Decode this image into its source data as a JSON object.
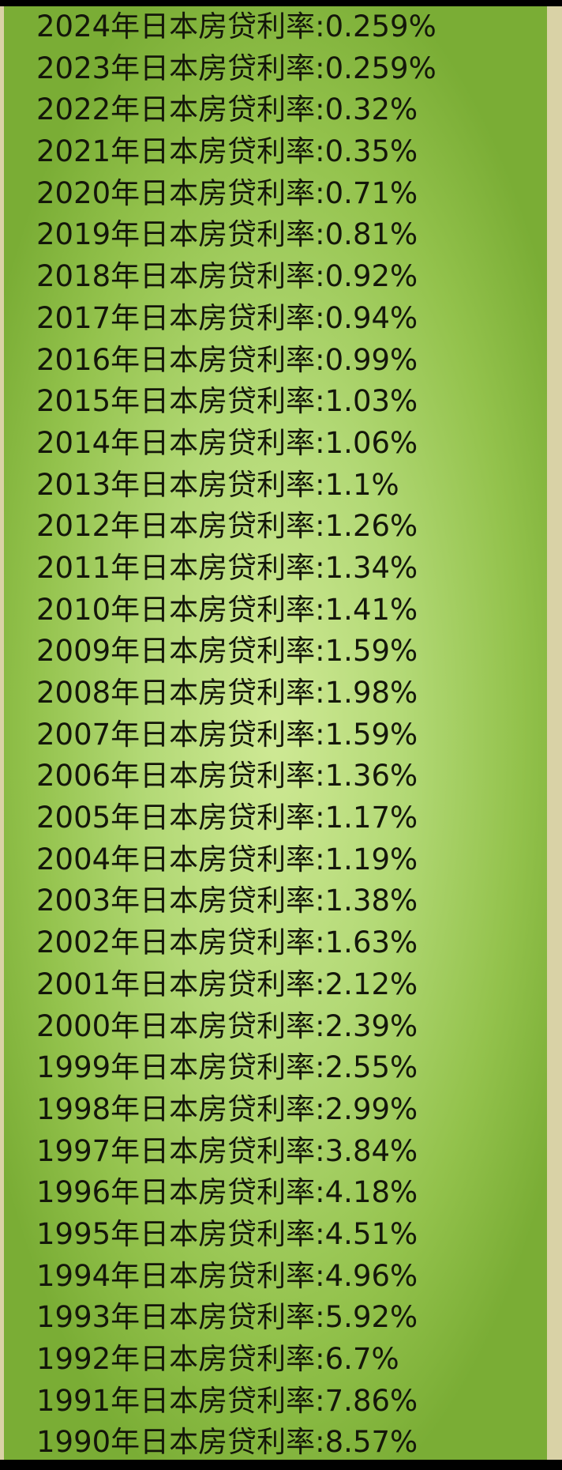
{
  "label": "年日本房贷利率:",
  "rows": [
    {
      "year": "2024",
      "rate": "0.259%"
    },
    {
      "year": "2023",
      "rate": "0.259%"
    },
    {
      "year": "2022",
      "rate": "0.32%"
    },
    {
      "year": "2021",
      "rate": "0.35%"
    },
    {
      "year": "2020",
      "rate": "0.71%"
    },
    {
      "year": "2019",
      "rate": "0.81%"
    },
    {
      "year": "2018",
      "rate": "0.92%"
    },
    {
      "year": "2017",
      "rate": "0.94%"
    },
    {
      "year": "2016",
      "rate": "0.99%"
    },
    {
      "year": "2015",
      "rate": "1.03%"
    },
    {
      "year": "2014",
      "rate": "1.06%"
    },
    {
      "year": "2013",
      "rate": "1.1%"
    },
    {
      "year": "2012",
      "rate": "1.26%"
    },
    {
      "year": "2011",
      "rate": "1.34%"
    },
    {
      "year": "2010",
      "rate": "1.41%"
    },
    {
      "year": "2009",
      "rate": "1.59%"
    },
    {
      "year": "2008",
      "rate": "1.98%"
    },
    {
      "year": "2007",
      "rate": "1.59%"
    },
    {
      "year": "2006",
      "rate": "1.36%"
    },
    {
      "year": "2005",
      "rate": "1.17%"
    },
    {
      "year": "2004",
      "rate": "1.19%"
    },
    {
      "year": "2003",
      "rate": "1.38%"
    },
    {
      "year": "2002",
      "rate": "1.63%"
    },
    {
      "year": "2001",
      "rate": "2.12%"
    },
    {
      "year": "2000",
      "rate": "2.39%"
    },
    {
      "year": "1999",
      "rate": "2.55%"
    },
    {
      "year": "1998",
      "rate": "2.99%"
    },
    {
      "year": "1997",
      "rate": "3.84%"
    },
    {
      "year": "1996",
      "rate": "4.18%"
    },
    {
      "year": "1995",
      "rate": "4.51%"
    },
    {
      "year": "1994",
      "rate": "4.96%"
    },
    {
      "year": "1993",
      "rate": "5.92%"
    },
    {
      "year": "1992",
      "rate": "6.7%"
    },
    {
      "year": "1991",
      "rate": "7.86%"
    },
    {
      "year": "1990",
      "rate": "8.57%"
    }
  ]
}
